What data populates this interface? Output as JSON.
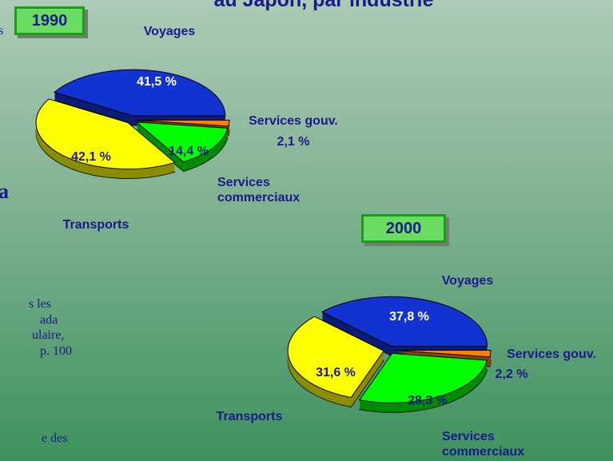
{
  "title": "au Japon, par industrie",
  "background_text": [
    "s",
    "a",
    "s les",
    "ada",
    "ulaire,",
    "p. 100",
    "e des"
  ],
  "chart_data": [
    {
      "type": "pie",
      "title": "1990",
      "categories": [
        "Voyages",
        "Transports",
        "Services commerciaux",
        "Services gouv."
      ],
      "values": [
        41.5,
        42.1,
        14.4,
        2.1
      ],
      "value_labels": [
        "41,5 %",
        "42,1 %",
        "14,4 %",
        "2,1 %"
      ],
      "colors": [
        "#1232d2",
        "#ffff00",
        "#00ff00",
        "#ff7f00"
      ]
    },
    {
      "type": "pie",
      "title": "2000",
      "categories": [
        "Voyages",
        "Transports",
        "Services commerciaux",
        "Services gouv."
      ],
      "values": [
        37.8,
        31.6,
        28.3,
        2.2
      ],
      "value_labels": [
        "37,8 %",
        "31,6 %",
        "28,3 %",
        "2,2 %"
      ],
      "colors": [
        "#1232d2",
        "#ffff00",
        "#00ff00",
        "#ff7f00"
      ]
    }
  ]
}
